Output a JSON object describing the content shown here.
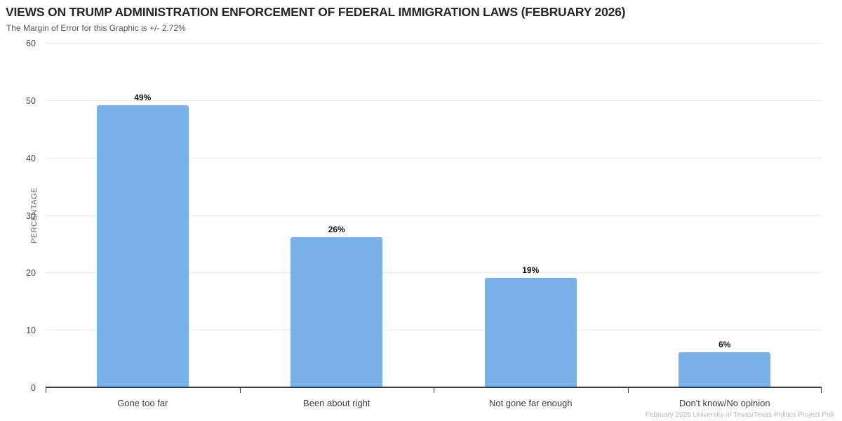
{
  "header": {
    "title": "VIEWS ON TRUMP ADMINISTRATION ENFORCEMENT OF FEDERAL IMMIGRATION LAWS (FEBRUARY 2026)",
    "subtitle": "The Margin of Error for this Graphic is +/- 2.72%"
  },
  "footer": {
    "credit": "February 2026 University of Texas/Texas Politics Project Poll"
  },
  "chart_data": {
    "type": "bar",
    "title": "VIEWS ON TRUMP ADMINISTRATION ENFORCEMENT OF FEDERAL IMMIGRATION LAWS (FEBRUARY 2026)",
    "subtitle": "The Margin of Error for this Graphic is +/- 2.72%",
    "categories": [
      "Gone too far",
      "Been about right",
      "Not gone far enough",
      "Don't know/No opinion"
    ],
    "values": [
      49,
      26,
      19,
      6
    ],
    "value_labels": [
      "49%",
      "26%",
      "19%",
      "6%"
    ],
    "xlabel": "",
    "ylabel": "PERCENTAGE",
    "ylim": [
      0,
      60
    ],
    "yticks": [
      0,
      10,
      20,
      30,
      40,
      50,
      60
    ],
    "grid": true,
    "legend": false,
    "bar_color": "#79b1e9",
    "source": "February 2026 University of Texas/Texas Politics Project Poll"
  }
}
